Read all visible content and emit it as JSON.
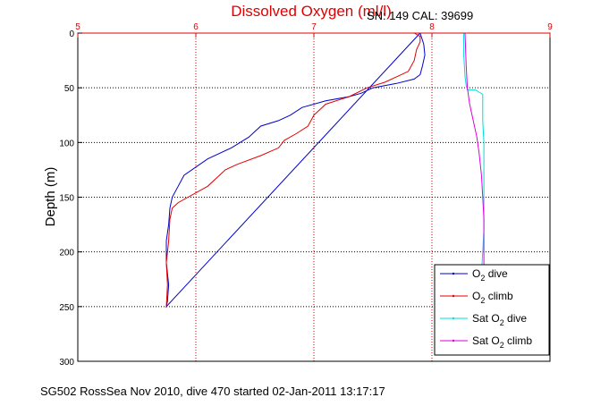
{
  "title": "Dissolved Oxygen (ml/l)",
  "serial_label": "SN: 149  CAL: 39699",
  "footer": "SG502 RossSea Nov 2010, dive 470 started 02-Jan-2011 13:17:17",
  "colors": {
    "title": "#e00000",
    "axis_top": "#e00000",
    "o2_dive": "#0000cc",
    "o2_climb": "#e00000",
    "sat_dive": "#00dddd",
    "sat_climb": "#dd00dd"
  },
  "chart_data": {
    "type": "line",
    "title": "Dissolved Oxygen (ml/l)",
    "xlabel": "",
    "ylabel": "Depth (m)",
    "xlim": [
      5,
      9
    ],
    "ylim": [
      0,
      300
    ],
    "y_reversed": true,
    "grid": true,
    "x_ticks": [
      "5",
      "6",
      "7",
      "8",
      "9"
    ],
    "y_ticks": [
      "0",
      "50",
      "100",
      "150",
      "200",
      "250",
      "300"
    ],
    "legend_position": "bottom-right",
    "series": [
      {
        "name": "O2 dive",
        "legend_main": "O",
        "legend_sub": "2",
        "legend_rest": " dive",
        "color": "#0000cc",
        "x": [
          7.9,
          7.93,
          7.94,
          7.92,
          7.9,
          7.85,
          7.7,
          7.5,
          7.4,
          7.3,
          7.1,
          6.9,
          6.8,
          6.7,
          6.55,
          6.45,
          6.3,
          6.1,
          5.9,
          5.85,
          5.8,
          5.78,
          5.77,
          5.75,
          5.75,
          5.77,
          5.76,
          5.75,
          7.9
        ],
        "y": [
          0,
          10,
          20,
          30,
          38,
          42,
          46,
          50,
          55,
          58,
          62,
          68,
          75,
          80,
          85,
          95,
          105,
          115,
          130,
          140,
          150,
          160,
          175,
          190,
          210,
          230,
          245,
          250,
          0
        ]
      },
      {
        "name": "O2 climb",
        "legend_main": "O",
        "legend_sub": "2",
        "legend_rest": " climb",
        "color": "#e00000",
        "x": [
          5.75,
          5.76,
          5.75,
          5.77,
          5.78,
          5.8,
          5.85,
          6.1,
          6.25,
          6.35,
          6.55,
          6.7,
          6.75,
          6.85,
          6.95,
          7.0,
          7.1,
          7.3,
          7.45,
          7.6,
          7.7,
          7.8,
          7.85,
          7.87,
          7.9,
          7.9,
          7.85
        ],
        "y": [
          250,
          230,
          210,
          190,
          170,
          160,
          155,
          140,
          125,
          120,
          112,
          105,
          98,
          92,
          85,
          75,
          65,
          58,
          50,
          45,
          40,
          35,
          25,
          15,
          8,
          3,
          0
        ]
      },
      {
        "name": "Sat O2 dive",
        "legend_main": "Sat O",
        "legend_sub": "2",
        "legend_rest": " dive",
        "color": "#00dddd",
        "x": [
          8.27,
          8.27,
          8.28,
          8.29,
          8.3,
          8.37,
          8.43,
          8.43,
          8.44,
          8.44,
          8.44,
          8.43,
          8.42
        ],
        "y": [
          0,
          20,
          40,
          48,
          52,
          52,
          56,
          80,
          100,
          150,
          180,
          200,
          220
        ]
      },
      {
        "name": "Sat O2 climb",
        "legend_main": "Sat O",
        "legend_sub": "2",
        "legend_rest": " climb",
        "color": "#dd00dd",
        "x": [
          8.28,
          8.29,
          8.3,
          8.32,
          8.35,
          8.38,
          8.4,
          8.42,
          8.43,
          8.44,
          8.44,
          8.44
        ],
        "y": [
          0,
          30,
          50,
          65,
          80,
          95,
          110,
          130,
          150,
          170,
          200,
          220
        ]
      }
    ]
  }
}
